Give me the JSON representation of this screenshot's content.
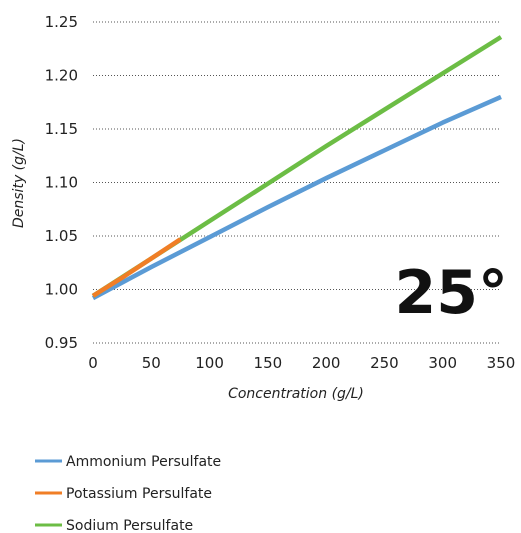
{
  "chart_data": {
    "type": "line",
    "title": "",
    "xlabel": "Concentration (g/L)",
    "ylabel": "Density (g/L)",
    "annotation": "25°",
    "xlim": [
      0,
      350
    ],
    "ylim": [
      0.95,
      1.25
    ],
    "x_ticks": [
      "0",
      "50",
      "100",
      "150",
      "200",
      "250",
      "300",
      "350"
    ],
    "y_ticks": [
      "1.25",
      "1.20",
      "1.15",
      "1.10",
      "1.05",
      "1.00",
      "0.95"
    ],
    "grid": "horizontal-dotted",
    "legend_position": "bottom-left",
    "series": [
      {
        "name": "Ammonium Persulfate",
        "color": "#5b9bd5",
        "x": [
          0,
          50,
          100,
          150,
          200,
          250,
          300,
          350
        ],
        "y": [
          0.992,
          1.021,
          1.049,
          1.077,
          1.104,
          1.13,
          1.156,
          1.18
        ]
      },
      {
        "name": "Sodium Persulfate",
        "color": "#6cbd45",
        "x": [
          0,
          50,
          100,
          150,
          200,
          250,
          300,
          350
        ],
        "y": [
          0.994,
          1.029,
          1.064,
          1.099,
          1.134,
          1.168,
          1.202,
          1.236
        ]
      },
      {
        "name": "Potassium Persulfate",
        "color": "#f07e26",
        "x": [
          0,
          25,
          50,
          75
        ],
        "y": [
          0.994,
          1.011,
          1.029,
          1.047
        ]
      }
    ],
    "legend": [
      {
        "name": "Ammonium Persulfate",
        "color": "#5b9bd5"
      },
      {
        "name": "Potassium Persulfate",
        "color": "#f07e26"
      },
      {
        "name": "Sodium Persulfate",
        "color": "#6cbd45"
      }
    ]
  }
}
